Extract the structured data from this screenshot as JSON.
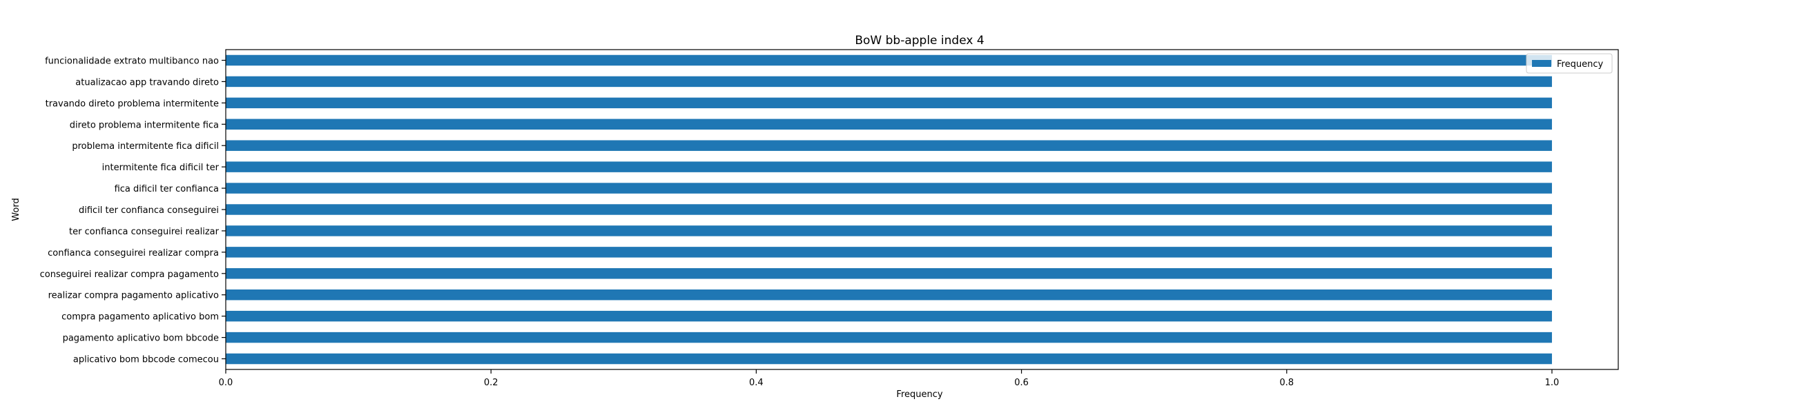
{
  "chart_data": {
    "type": "bar",
    "orientation": "horizontal",
    "title": "BoW bb-apple index 4",
    "xlabel": "Frequency",
    "ylabel": "Word",
    "xlim": [
      0,
      1.05
    ],
    "xticks": [
      "0.0",
      "0.2",
      "0.4",
      "0.6",
      "0.8",
      "1.0"
    ],
    "grid": false,
    "legend": {
      "placement": "top-right",
      "entries": [
        "Frequency"
      ]
    },
    "bar_color": "#1f77b4",
    "categories": [
      "funcionalidade extrato multibanco nao",
      "atualizacao app travando direto",
      "travando direto problema intermitente",
      "direto problema intermitente fica",
      "problema intermitente fica dificil",
      "intermitente fica dificil ter",
      "fica dificil ter confianca",
      "dificil ter confianca conseguirei",
      "ter confianca conseguirei realizar",
      "confianca conseguirei realizar compra",
      "conseguirei realizar compra pagamento",
      "realizar compra pagamento aplicativo",
      "compra pagamento aplicativo bom",
      "pagamento aplicativo bom bbcode",
      "aplicativo bom bbcode comecou"
    ],
    "series": [
      {
        "name": "Frequency",
        "values": [
          1,
          1,
          1,
          1,
          1,
          1,
          1,
          1,
          1,
          1,
          1,
          1,
          1,
          1,
          1
        ]
      }
    ]
  }
}
